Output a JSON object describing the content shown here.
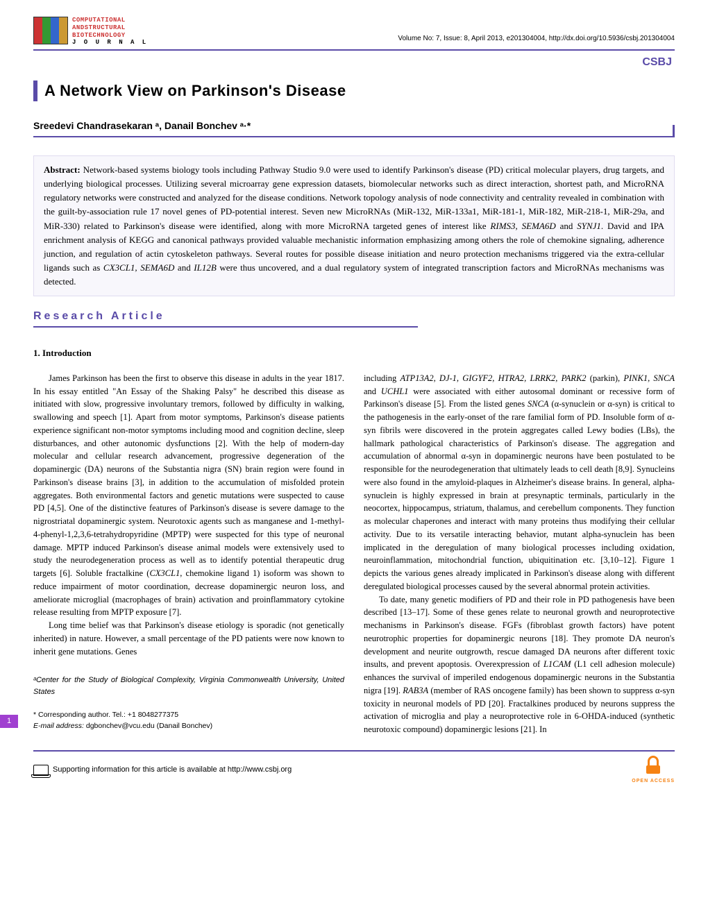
{
  "journal": {
    "logo_lines": [
      "COMPUTATIONAL",
      "ANDSTRUCTURAL",
      "BIOTECHNOLOGY"
    ],
    "logo_journal": "J O U R N A L",
    "meta": "Volume No: 7, Issue: 8, April 2013, e201304004, http://dx.doi.org/10.5936/csbj.201304004",
    "short": "CSBJ"
  },
  "title": "A Network View on Parkinson's Disease",
  "authors": "Sreedevi Chandrasekaran ᵃ, Danail Bonchev ᵃ·*",
  "abstract": {
    "label": "Abstract:",
    "text": "Network-based systems biology tools including Pathway Studio 9.0 were used to identify Parkinson's disease (PD) critical molecular players, drug targets, and underlying biological processes. Utilizing several microarray gene expression datasets, biomolecular networks such as direct interaction, shortest path, and MicroRNA regulatory networks were constructed and analyzed for the disease conditions. Network topology analysis of node connectivity and centrality revealed in combination with the guilt-by-association rule 17 novel genes of PD-potential interest. Seven new MicroRNAs (MiR-132, MiR-133a1, MiR-181-1, MiR-182, MiR-218-1, MiR-29a, and MiR-330) related to Parkinson's disease were identified, along with more MicroRNA targeted genes of interest like RIMS3, SEMA6D and SYNJ1. David and IPA enrichment analysis of KEGG and canonical pathways provided valuable mechanistic information emphasizing among others the role of chemokine signaling, adherence junction, and regulation of actin cytoskeleton pathways. Several routes for possible disease initiation and neuro protection mechanisms triggered via the extra-cellular ligands such as CX3CL1, SEMA6D and IL12B were thus uncovered, and a dual regulatory system of integrated transcription factors and MicroRNAs mechanisms was detected.",
    "italic_terms": [
      "RIMS3, SEMA6D",
      "SYNJ1",
      "CX3CL1, SEMA6D",
      "IL12B"
    ]
  },
  "section_label": "Research Article",
  "intro_heading": "1. Introduction",
  "col1": {
    "p1": "James Parkinson has been the first to observe this disease in adults in the year 1817. In his essay entitled \"An Essay of the Shaking Palsy\" he described this disease as initiated with slow, progressive involuntary tremors, followed by difficulty in walking, swallowing and speech [1]. Apart from motor symptoms, Parkinson's disease patients experience significant non-motor symptoms including mood and cognition decline, sleep disturbances, and other autonomic dysfunctions [2]. With the help of modern-day molecular and cellular research advancement, progressive degeneration of the dopaminergic (DA) neurons of the Substantia nigra (SN) brain region were found in Parkinson's disease brains [3], in addition to the accumulation of misfolded protein aggregates. Both environmental factors and genetic mutations were suspected to cause PD [4,5]. One of the distinctive features of Parkinson's disease is severe damage to the nigrostriatal dopaminergic system. Neurotoxic agents such as manganese and 1-methyl-4-phenyl-1,2,3,6-tetrahydropyridine (MPTP) were suspected for this type of neuronal damage. MPTP induced Parkinson's disease animal models were extensively used to study the neurodegeneration process as well as to identify potential therapeutic drug targets [6]. Soluble fractalkine (CX3CL1, chemokine ligand 1) isoform was shown to reduce impairment of motor coordination, decrease dopaminergic neuron loss, and ameliorate microglial (macrophages of brain) activation and proinflammatory cytokine release resulting from MPTP exposure [7].",
    "p2": "Long time belief was that Parkinson's disease etiology is sporadic (not genetically inherited) in nature. However, a small percentage of the PD patients were now known to inherit gene mutations. Genes"
  },
  "col2": {
    "p1": "including ATP13A2, DJ-1, GIGYF2, HTRA2, LRRK2, PARK2 (parkin), PINK1, SNCA and UCHL1 were associated with either autosomal dominant or recessive form of Parkinson's disease [5]. From the listed genes SNCA (α-synuclein or α-syn) is critical to the pathogenesis in the early-onset of the rare familial form of PD. Insoluble form of α-syn fibrils were discovered in the protein aggregates called Lewy bodies (LBs), the hallmark pathological characteristics of Parkinson's disease. The aggregation and accumulation of abnormal α-syn in dopaminergic neurons have been postulated to be responsible for the neurodegeneration that ultimately leads to cell death [8,9]. Synucleins were also found in the amyloid-plaques in Alzheimer's disease brains. In general, alpha-synuclein is highly expressed in brain at presynaptic terminals, particularly in the neocortex, hippocampus, striatum, thalamus, and cerebellum components. They function as molecular chaperones and interact with many proteins thus modifying their cellular activity. Due to its versatile interacting behavior, mutant alpha-synuclein has been implicated in the deregulation of many biological processes including oxidation, neuroinflammation, mitochondrial function, ubiquitination etc. [3,10–12]. Figure 1 depicts the various genes already implicated in Parkinson's disease along with different deregulated biological processes caused by the several abnormal protein activities.",
    "p2": "To date, many genetic modifiers of PD and their role in PD pathogenesis have been described [13–17]. Some of these genes relate to neuronal growth and neuroprotective mechanisms in Parkinson's disease. FGFs (fibroblast growth factors) have potent neurotrophic properties for dopaminergic neurons [18]. They promote DA neuron's development and neurite outgrowth, rescue damaged DA neurons after different toxic insults, and prevent apoptosis. Overexpression of L1CAM (L1 cell adhesion molecule) enhances the survival of imperiled endogenous dopaminergic neurons in the Substantia nigra [19]. RAB3A (member of RAS oncogene family) has been shown to suppress α-syn toxicity in neuronal models of PD [20]. Fractalkines produced by neurons suppress the activation of microglia and play a neuroprotective role in 6-OHDA-induced (synthetic neurotoxic compound) dopaminergic lesions [21]. In"
  },
  "page_number": "1",
  "affiliation": "ᵃCenter for the Study of Biological Complexity, Virginia Commonwealth University, United States",
  "corresponding": {
    "line1": "* Corresponding author. Tel.: +1 8048277375",
    "line2": "E-mail address: dgbonchev@vcu.edu (Danail Bonchev)"
  },
  "footer": {
    "supporting": "Supporting information for this article is available at http://www.csbj.org",
    "open_access": "OPEN    ACCESS"
  },
  "colors": {
    "accent": "#5a4ba8",
    "page_num_bg": "#a040d0",
    "oa": "#f68212",
    "abstract_bg": "#f8f7fc"
  }
}
